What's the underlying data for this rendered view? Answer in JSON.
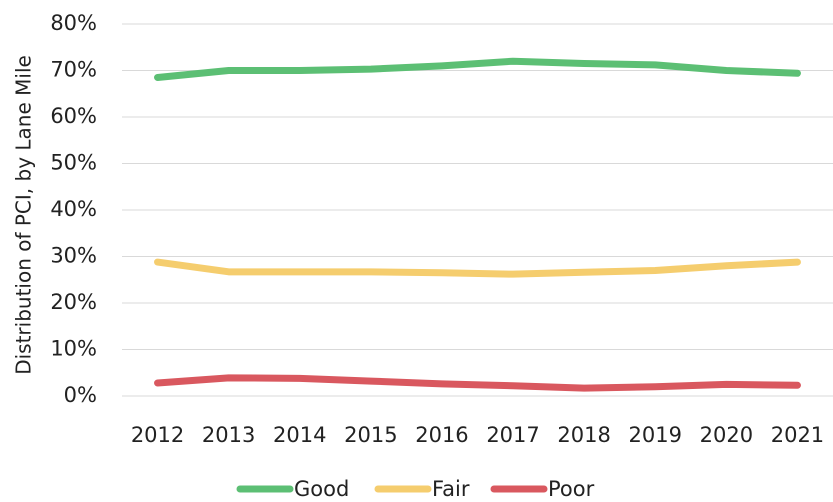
{
  "chart_data": {
    "type": "line",
    "y_label": "Distribution of PCI, by Lane Mile",
    "categories": [
      "2012",
      "2013",
      "2014",
      "2015",
      "2016",
      "2017",
      "2018",
      "2019",
      "2020",
      "2021"
    ],
    "series": [
      {
        "name": "Good",
        "color": "#5cbf74",
        "values": [
          68.5,
          70,
          70,
          70.3,
          71,
          72,
          71.5,
          71.2,
          70,
          69.4
        ]
      },
      {
        "name": "Fair",
        "color": "#f5cd6e",
        "values": [
          28.8,
          26.7,
          26.7,
          26.7,
          26.5,
          26.2,
          26.6,
          27,
          28,
          28.8
        ]
      },
      {
        "name": "Poor",
        "color": "#d9585f",
        "values": [
          2.8,
          3.9,
          3.8,
          3.2,
          2.6,
          2.2,
          1.7,
          2,
          2.5,
          2.3
        ]
      }
    ],
    "ylim": [
      0,
      80
    ],
    "yticks": [
      {
        "value": 0,
        "label": "0%"
      },
      {
        "value": 10,
        "label": "10%"
      },
      {
        "value": 20,
        "label": "20%"
      },
      {
        "value": 30,
        "label": "30%"
      },
      {
        "value": 40,
        "label": "40%"
      },
      {
        "value": 50,
        "label": "50%"
      },
      {
        "value": 60,
        "label": "60%"
      },
      {
        "value": 70,
        "label": "70%"
      },
      {
        "value": 80,
        "label": "80%"
      }
    ],
    "grid": true,
    "legend": "bottom"
  }
}
